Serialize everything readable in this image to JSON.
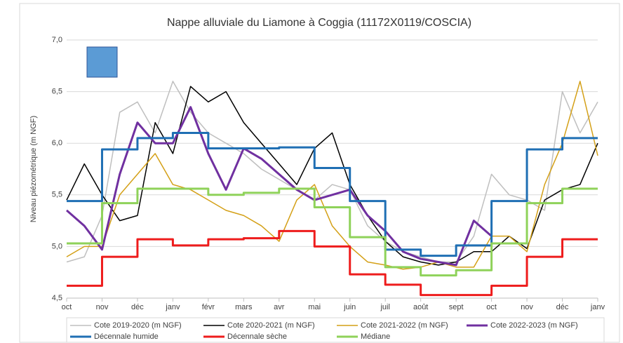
{
  "chart_data": {
    "type": "line",
    "title": "Nappe alluviale du Liamone à Coggia (11172X0119/COSCIA)",
    "y_label": "Niveau piézométrique (m NGF)",
    "categories": [
      "oct",
      null,
      "nov",
      null,
      "déc",
      null,
      "janv",
      null,
      "févr",
      null,
      "mars",
      null,
      "avr",
      null,
      "mai",
      null,
      "juin",
      null,
      "juil",
      null,
      "août",
      null,
      "sept",
      null,
      "oct",
      null,
      "nov",
      null,
      "déc",
      null,
      "janv"
    ],
    "ylim": [
      4.5,
      7.0
    ],
    "yticks": [
      {
        "value": 4.5,
        "label": "4,5"
      },
      {
        "value": 5.0,
        "label": "5,0"
      },
      {
        "value": 5.5,
        "label": "5,5"
      },
      {
        "value": 6.0,
        "label": "6,0"
      },
      {
        "value": 6.5,
        "label": "6,5"
      },
      {
        "value": 7.0,
        "label": "7,0"
      }
    ],
    "grid": true,
    "legend": "bottom",
    "series": [
      {
        "name": "Cote 2019-2020 (m NGF)",
        "color": "#bfbfbf",
        "width": 1.5,
        "values": [
          4.85,
          4.9,
          5.3,
          6.3,
          6.4,
          6.1,
          6.6,
          6.3,
          6.1,
          6.0,
          5.9,
          5.75,
          5.65,
          5.55,
          5.45,
          5.6,
          5.55,
          5.2,
          5.05,
          4.95,
          4.9,
          4.85,
          4.85,
          5.1,
          5.7,
          5.5,
          5.45,
          5.35,
          6.5,
          6.1,
          6.4
        ]
      },
      {
        "name": "Cote 2020-2021 (m NGF)",
        "color": "#000000",
        "width": 1.5,
        "values": [
          5.45,
          5.8,
          5.5,
          5.25,
          5.3,
          6.2,
          5.9,
          6.55,
          6.4,
          6.5,
          6.2,
          6.0,
          5.8,
          5.6,
          5.95,
          6.1,
          5.6,
          5.3,
          5.05,
          4.9,
          4.85,
          4.82,
          4.85,
          4.95,
          4.95,
          5.1,
          4.98,
          5.45,
          5.55,
          5.6,
          6.0
        ]
      },
      {
        "name": "Cote 2021-2022 (m NGF)",
        "color": "#d4a017",
        "width": 1.5,
        "values": [
          4.9,
          5.0,
          5.0,
          5.5,
          5.7,
          5.9,
          5.6,
          5.55,
          5.45,
          5.35,
          5.3,
          5.2,
          5.05,
          5.45,
          5.6,
          5.2,
          5.0,
          4.85,
          4.82,
          4.78,
          4.8,
          4.85,
          4.8,
          4.8,
          5.1,
          5.1,
          4.95,
          5.6,
          6.0,
          6.6,
          5.88
        ]
      },
      {
        "name": "Cote 2022-2023 (m NGF)",
        "color": "#7030a0",
        "width": 3,
        "values": [
          5.35,
          5.2,
          4.97,
          5.7,
          6.2,
          6.0,
          6.0,
          6.35,
          5.9,
          5.55,
          5.95,
          5.85,
          5.7,
          5.55,
          5.45,
          5.5,
          5.55,
          5.3,
          5.15,
          4.95,
          4.88,
          4.85,
          4.82,
          5.25,
          5.1,
          null,
          null,
          null,
          null,
          null,
          null
        ]
      },
      {
        "name": "Décennale humide",
        "color": "#1f6fb4",
        "width": 3,
        "step": true,
        "values": [
          5.44,
          5.44,
          5.94,
          5.94,
          6.05,
          6.05,
          6.1,
          6.1,
          5.95,
          5.95,
          5.95,
          5.95,
          5.96,
          5.96,
          5.76,
          5.76,
          5.44,
          5.44,
          4.97,
          4.97,
          4.91,
          4.91,
          5.01,
          5.01,
          5.44,
          5.44,
          5.94,
          5.94,
          6.05,
          6.05,
          6.05
        ]
      },
      {
        "name": "Décennale sèche",
        "color": "#ee1c1c",
        "width": 3,
        "step": true,
        "values": [
          4.62,
          4.62,
          4.9,
          4.9,
          5.07,
          5.07,
          5.01,
          5.01,
          5.07,
          5.07,
          5.08,
          5.08,
          5.15,
          5.15,
          5.0,
          5.0,
          4.73,
          4.73,
          4.63,
          4.63,
          4.53,
          4.53,
          4.53,
          4.53,
          4.62,
          4.62,
          4.9,
          4.9,
          5.07,
          5.07,
          5.07
        ]
      },
      {
        "name": "Médiane",
        "color": "#8fd25a",
        "width": 3,
        "step": true,
        "values": [
          5.03,
          5.03,
          5.42,
          5.42,
          5.56,
          5.56,
          5.56,
          5.56,
          5.5,
          5.5,
          5.52,
          5.52,
          5.56,
          5.56,
          5.38,
          5.38,
          5.09,
          5.09,
          4.8,
          4.8,
          4.72,
          4.72,
          4.77,
          4.77,
          5.03,
          5.03,
          5.42,
          5.42,
          5.56,
          5.56,
          5.56
        ]
      }
    ]
  }
}
